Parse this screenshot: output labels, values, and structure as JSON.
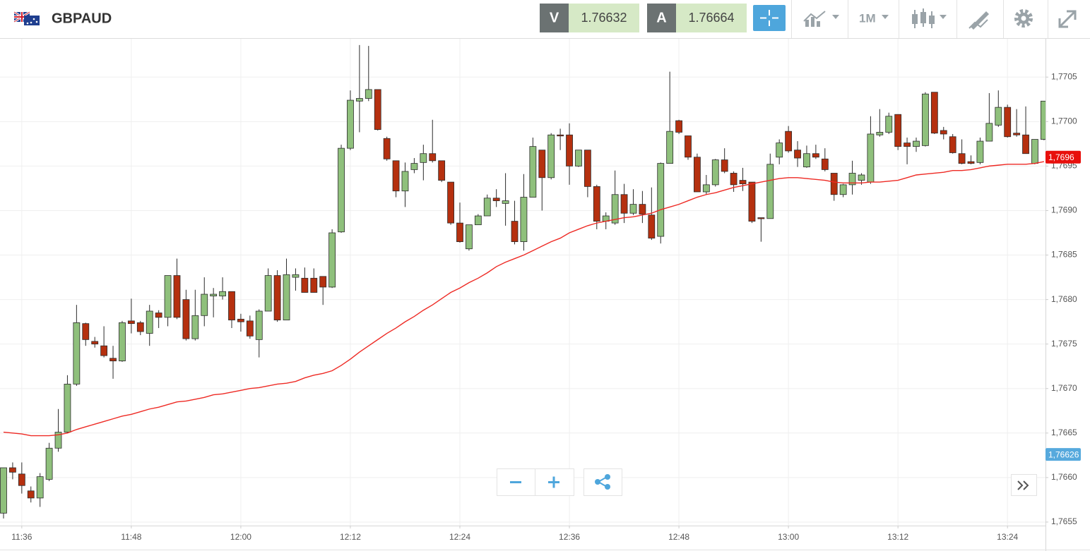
{
  "header": {
    "symbol": "GBPAUD",
    "bid_label": "V",
    "bid": 1.76632,
    "ask_label": "A",
    "ask": 1.76664,
    "timeframe": "1M"
  },
  "chart_data": {
    "type": "candlestick",
    "categories": [
      null,
      null,
      "11:36",
      null,
      null,
      null,
      null,
      null,
      null,
      null,
      null,
      null,
      null,
      null,
      "11:48",
      null,
      null,
      null,
      null,
      null,
      null,
      null,
      null,
      null,
      null,
      null,
      "12:00",
      null,
      null,
      null,
      null,
      null,
      null,
      null,
      null,
      null,
      null,
      null,
      "12:12",
      null,
      null,
      null,
      null,
      null,
      null,
      null,
      null,
      null,
      null,
      null,
      "12:24",
      null,
      null,
      null,
      null,
      null,
      null,
      null,
      null,
      null,
      null,
      null,
      "12:36",
      null,
      null,
      null,
      null,
      null,
      null,
      null,
      null,
      null,
      null,
      null,
      "12:48",
      null,
      null,
      null,
      null,
      null,
      null,
      null,
      null,
      null,
      null,
      null,
      "13:00",
      null,
      null,
      null,
      null,
      null,
      null,
      null,
      null,
      null,
      null,
      null,
      "13:12",
      null,
      null,
      null,
      null,
      null,
      null,
      null,
      null,
      null,
      null,
      null,
      "13:24",
      null,
      null,
      null,
      null
    ],
    "open": [
      1.7656,
      1.76611,
      1.76604,
      1.76585,
      1.76577,
      1.76598,
      1.76633,
      1.76651,
      1.76705,
      1.76773,
      1.76753,
      1.76748,
      1.76734,
      1.76731,
      1.76776,
      1.76774,
      1.76762,
      1.76785,
      1.7678,
      1.76827,
      1.768,
      1.76756,
      1.76782,
      1.76804,
      1.76804,
      1.76809,
      1.76778,
      1.76776,
      1.76755,
      1.76787,
      1.76827,
      1.76777,
      1.76825,
      1.76824,
      1.76824,
      1.76826,
      1.76814,
      1.76876,
      1.7697,
      1.77023,
      1.77026,
      1.77036,
      1.76981,
      1.76956,
      1.76922,
      1.76946,
      1.76954,
      1.76964,
      1.76956,
      1.76932,
      1.76886,
      1.76857,
      1.76884,
      1.76894,
      1.76914,
      1.76908,
      1.76888,
      1.76865,
      1.76915,
      1.76968,
      1.76937,
      1.76985,
      1.76985,
      1.7695,
      1.76968,
      1.76927,
      1.76888,
      1.76886,
      1.76918,
      1.76897,
      1.76907,
      1.76895,
      1.76871,
      1.76953,
      1.77001,
      1.76984,
      1.7696,
      1.76921,
      1.76929,
      1.76957,
      1.76942,
      1.76934,
      1.76932,
      1.76892,
      1.76891,
      1.7696,
      1.76989,
      1.76968,
      1.76949,
      1.76964,
      1.76958,
      1.76942,
      1.76918,
      1.76929,
      1.76934,
      1.76932,
      1.76985,
      1.76988,
      1.77008,
      1.76976,
      1.76972,
      1.76973,
      1.77033,
      1.7699,
      1.76983,
      1.76964,
      1.76955,
      1.76954,
      1.76978,
      1.76996,
      1.77016,
      1.76987,
      1.76985,
      1.76953,
      1.7698
    ],
    "high": [
      1.76611,
      1.76617,
      1.76617,
      1.7659,
      1.76605,
      1.76639,
      1.76677,
      1.76715,
      1.76794,
      1.76774,
      1.76758,
      1.7677,
      1.76748,
      1.76776,
      1.76801,
      1.76776,
      1.76794,
      1.76788,
      1.76827,
      1.76846,
      1.76811,
      1.76811,
      1.76825,
      1.76813,
      1.76825,
      1.76809,
      1.76784,
      1.76782,
      1.76789,
      1.76835,
      1.76833,
      1.76846,
      1.76835,
      1.76836,
      1.76835,
      1.76826,
      1.76879,
      1.76974,
      1.77035,
      1.77086,
      1.77085,
      1.77036,
      1.76983,
      1.76956,
      1.76954,
      1.76959,
      1.76974,
      1.77002,
      1.76956,
      1.76932,
      1.76909,
      1.76884,
      1.76896,
      1.76918,
      1.76924,
      1.76942,
      1.76911,
      1.76941,
      1.76982,
      1.76968,
      1.76987,
      1.76992,
      1.76998,
      1.76968,
      1.76968,
      1.76929,
      1.76898,
      1.76945,
      1.7693,
      1.76924,
      1.76922,
      1.76926,
      1.76954,
      1.77056,
      1.77002,
      1.76984,
      1.76964,
      1.7694,
      1.76958,
      1.7697,
      1.76944,
      1.76948,
      1.76932,
      1.76892,
      1.76964,
      1.7698,
      1.76995,
      1.76978,
      1.76973,
      1.76974,
      1.7697,
      1.76942,
      1.7693,
      1.76956,
      1.76942,
      1.77006,
      1.77014,
      1.7701,
      1.77008,
      1.76982,
      1.76982,
      1.77033,
      1.77033,
      1.76994,
      1.76986,
      1.7698,
      1.76962,
      1.76982,
      1.77032,
      1.77035,
      1.77019,
      1.77014,
      1.77017,
      1.7698,
      1.77023
    ],
    "low": [
      1.76554,
      1.76598,
      1.76582,
      1.76572,
      1.76567,
      1.76596,
      1.76629,
      1.7665,
      1.76703,
      1.76748,
      1.76746,
      1.76735,
      1.76711,
      1.7673,
      1.76762,
      1.7676,
      1.76748,
      1.76768,
      1.7677,
      1.76778,
      1.76754,
      1.76754,
      1.7677,
      1.7678,
      1.768,
      1.76768,
      1.76764,
      1.76756,
      1.76735,
      1.76787,
      1.76775,
      1.76777,
      1.7681,
      1.76808,
      1.76808,
      1.76794,
      1.76813,
      1.76875,
      1.76968,
      1.76988,
      1.77023,
      1.7699,
      1.76956,
      1.76915,
      1.76904,
      1.76942,
      1.76934,
      1.76954,
      1.76932,
      1.76884,
      1.76864,
      1.76855,
      1.76884,
      1.76894,
      1.76904,
      1.76883,
      1.76862,
      1.76855,
      1.76915,
      1.769,
      1.76935,
      1.76968,
      1.76929,
      1.76949,
      1.76915,
      1.76879,
      1.76879,
      1.76884,
      1.76886,
      1.76895,
      1.76886,
      1.76867,
      1.76863,
      1.76953,
      1.76986,
      1.76957,
      1.76921,
      1.76918,
      1.76927,
      1.76942,
      1.76921,
      1.76922,
      1.76886,
      1.76865,
      1.76891,
      1.76952,
      1.76965,
      1.76949,
      1.76948,
      1.76958,
      1.76944,
      1.76911,
      1.76915,
      1.76918,
      1.76929,
      1.7693,
      1.76983,
      1.76986,
      1.76968,
      1.76952,
      1.76966,
      1.76972,
      1.76986,
      1.7698,
      1.76964,
      1.76952,
      1.76952,
      1.76952,
      1.76978,
      1.76994,
      1.76982,
      1.76983,
      1.76964,
      1.76952,
      1.76979
    ],
    "close": [
      1.76611,
      1.76606,
      1.76591,
      1.76577,
      1.76601,
      1.76633,
      1.76651,
      1.76705,
      1.76774,
      1.76755,
      1.7675,
      1.76737,
      1.76731,
      1.76774,
      1.76773,
      1.76764,
      1.76787,
      1.7678,
      1.76827,
      1.7678,
      1.76756,
      1.76782,
      1.76806,
      1.76806,
      1.76809,
      1.76777,
      1.76775,
      1.76759,
      1.76787,
      1.76827,
      1.76777,
      1.76828,
      1.76828,
      1.76808,
      1.76808,
      1.76814,
      1.76875,
      1.7697,
      1.77024,
      1.77026,
      1.77036,
      1.76991,
      1.76958,
      1.76922,
      1.76944,
      1.76953,
      1.76964,
      1.76956,
      1.76934,
      1.76886,
      1.76865,
      1.76884,
      1.76894,
      1.76914,
      1.76911,
      1.76911,
      1.76865,
      1.76915,
      1.76972,
      1.76937,
      1.76985,
      1.76984,
      1.7695,
      1.76968,
      1.76927,
      1.76888,
      1.76894,
      1.76918,
      1.76897,
      1.76907,
      1.76896,
      1.76869,
      1.76953,
      1.76989,
      1.76988,
      1.7696,
      1.76921,
      1.76929,
      1.76957,
      1.76944,
      1.76929,
      1.7693,
      1.76888,
      1.76891,
      1.76952,
      1.76976,
      1.76967,
      1.76959,
      1.76964,
      1.7696,
      1.76946,
      1.76918,
      1.76929,
      1.76942,
      1.7694,
      1.76986,
      1.76988,
      1.77006,
      1.76972,
      1.76972,
      1.76978,
      1.77031,
      1.76987,
      1.76986,
      1.76965,
      1.76953,
      1.76953,
      1.76978,
      1.76998,
      1.77016,
      1.76983,
      1.76985,
      1.76964,
      1.7698,
      1.77023
    ],
    "up_color": "#8fc07c",
    "down_color": "#b5300f",
    "ma": {
      "color": "#ee2a24",
      "values": [
        1.76651,
        1.7665,
        1.76649,
        1.76647,
        1.76647,
        1.76647,
        1.76648,
        1.7665,
        1.76654,
        1.76657,
        1.7666,
        1.76663,
        1.76666,
        1.76669,
        1.76671,
        1.76674,
        1.76677,
        1.76679,
        1.76682,
        1.76685,
        1.76686,
        1.76688,
        1.7669,
        1.76693,
        1.76694,
        1.76696,
        1.76698,
        1.767,
        1.76701,
        1.76703,
        1.76705,
        1.76706,
        1.76708,
        1.76712,
        1.76715,
        1.76717,
        1.7672,
        1.76726,
        1.76733,
        1.76741,
        1.76748,
        1.76755,
        1.76762,
        1.76768,
        1.76775,
        1.76781,
        1.76788,
        1.76794,
        1.76801,
        1.76808,
        1.76813,
        1.76819,
        1.76824,
        1.7683,
        1.76837,
        1.76842,
        1.76846,
        1.7685,
        1.76855,
        1.7686,
        1.76865,
        1.76869,
        1.76875,
        1.76879,
        1.76883,
        1.76886,
        1.76888,
        1.7689,
        1.76892,
        1.76893,
        1.76895,
        1.76897,
        1.76901,
        1.76904,
        1.76907,
        1.76911,
        1.76915,
        1.76918,
        1.7692,
        1.76923,
        1.76926,
        1.76928,
        1.7693,
        1.76932,
        1.76934,
        1.76936,
        1.76937,
        1.76937,
        1.76936,
        1.76935,
        1.76934,
        1.76932,
        1.76931,
        1.76931,
        1.76931,
        1.76932,
        1.76932,
        1.76933,
        1.76934,
        1.76937,
        1.7694,
        1.76941,
        1.76942,
        1.76943,
        1.76945,
        1.76945,
        1.76946,
        1.76948,
        1.7695,
        1.76951,
        1.76952,
        1.76952,
        1.76952,
        1.76953,
        1.76955
      ]
    },
    "ylim": [
      1.76546,
      1.77093
    ],
    "yticks": [
      {
        "value": 1.7655,
        "label": "1,7655"
      },
      {
        "value": 1.766,
        "label": "1,7660"
      },
      {
        "value": 1.7665,
        "label": "1,7665"
      },
      {
        "value": 1.767,
        "label": "1,7670"
      },
      {
        "value": 1.7675,
        "label": "1,7675"
      },
      {
        "value": 1.768,
        "label": "1,7680"
      },
      {
        "value": 1.7685,
        "label": "1,7685"
      },
      {
        "value": 1.769,
        "label": "1,7690"
      },
      {
        "value": 1.7695,
        "label": "1,7695"
      },
      {
        "value": 1.77,
        "label": "1,7700"
      },
      {
        "value": 1.7705,
        "label": "1,7705"
      }
    ],
    "price_markers": [
      {
        "value": 1.7696,
        "label": "1,7696",
        "color": "#e8100c"
      },
      {
        "value": 1.76626,
        "label": "1,76626",
        "color": "#56a9dd"
      }
    ],
    "grid": true
  }
}
